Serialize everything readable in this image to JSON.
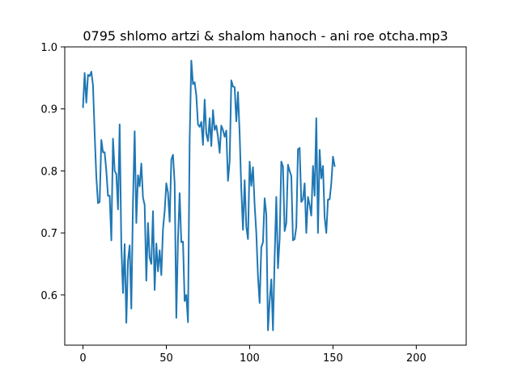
{
  "chart_data": {
    "type": "line",
    "title": "0795 shlomo artzi & shalom hanoch - ani roe otcha.mp3",
    "xlabel": "",
    "ylabel": "",
    "xlim": [
      -10.95,
      229.95
    ],
    "ylim": [
      0.519,
      1.0
    ],
    "xticks": [
      0,
      50,
      100,
      150,
      200
    ],
    "yticks": [
      0.6,
      0.7,
      0.8,
      0.9,
      1.0
    ],
    "xtick_labels": [
      "0",
      "50",
      "100",
      "150",
      "200"
    ],
    "ytick_labels": [
      "0.6",
      "0.7",
      "0.8",
      "0.9",
      "1.0"
    ],
    "grid": false,
    "line_color": "#1f77b4",
    "series": [
      {
        "values": [
          0.903,
          0.958,
          0.91,
          0.955,
          0.953,
          0.96,
          0.938,
          0.86,
          0.79,
          0.748,
          0.75,
          0.85,
          0.83,
          0.83,
          0.8,
          0.76,
          0.76,
          0.688,
          0.852,
          0.8,
          0.795,
          0.738,
          0.875,
          0.68,
          0.603,
          0.682,
          0.555,
          0.655,
          0.68,
          0.578,
          0.75,
          0.864,
          0.716,
          0.793,
          0.775,
          0.812,
          0.757,
          0.745,
          0.623,
          0.716,
          0.66,
          0.65,
          0.735,
          0.608,
          0.683,
          0.638,
          0.672,
          0.632,
          0.706,
          0.735,
          0.78,
          0.765,
          0.718,
          0.818,
          0.826,
          0.78,
          0.563,
          0.69,
          0.764,
          0.685,
          0.686,
          0.59,
          0.6,
          0.556,
          0.85,
          0.978,
          0.94,
          0.943,
          0.922,
          0.875,
          0.871,
          0.879,
          0.842,
          0.915,
          0.86,
          0.848,
          0.885,
          0.84,
          0.898,
          0.866,
          0.873,
          0.855,
          0.829,
          0.873,
          0.866,
          0.855,
          0.865,
          0.784,
          0.815,
          0.946,
          0.936,
          0.935,
          0.88,
          0.927,
          0.86,
          0.77,
          0.705,
          0.785,
          0.71,
          0.69,
          0.815,
          0.776,
          0.806,
          0.745,
          0.7,
          0.63,
          0.587,
          0.677,
          0.685,
          0.756,
          0.73,
          0.543,
          0.59,
          0.625,
          0.543,
          0.66,
          0.758,
          0.643,
          0.69,
          0.815,
          0.807,
          0.703,
          0.716,
          0.81,
          0.8,
          0.792,
          0.688,
          0.69,
          0.71,
          0.835,
          0.837,
          0.75,
          0.754,
          0.78,
          0.7,
          0.758,
          0.745,
          0.728,
          0.808,
          0.76,
          0.885,
          0.7,
          0.834,
          0.788,
          0.808,
          0.725,
          0.7,
          0.754,
          0.754,
          0.78,
          0.823,
          0.808
        ]
      }
    ]
  }
}
